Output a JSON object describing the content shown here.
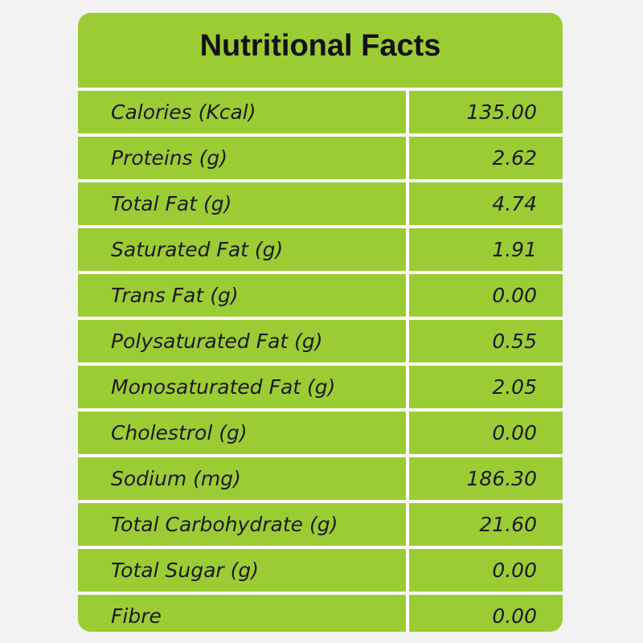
{
  "title": "Nutritional Facts",
  "colors": {
    "panel": "#9ccc34",
    "grid_lines": "#ffffff",
    "background": "#f2f2f2"
  },
  "rows": [
    {
      "label": "Calories (Kcal)",
      "value": "135.00"
    },
    {
      "label": "Proteins (g)",
      "value": "2.62"
    },
    {
      "label": "Total Fat (g)",
      "value": "4.74"
    },
    {
      "label": "Saturated Fat (g)",
      "value": "1.91"
    },
    {
      "label": "Trans Fat (g)",
      "value": "0.00"
    },
    {
      "label": "Polysaturated Fat (g)",
      "value": "0.55"
    },
    {
      "label": "Monosaturated Fat (g)",
      "value": "2.05"
    },
    {
      "label": "Cholestrol (g)",
      "value": "0.00"
    },
    {
      "label": "Sodium (mg)",
      "value": "186.30"
    },
    {
      "label": "Total Carbohydrate (g)",
      "value": "21.60"
    },
    {
      "label": "Total Sugar (g)",
      "value": "0.00"
    },
    {
      "label": "Fibre",
      "value": "0.00"
    }
  ]
}
